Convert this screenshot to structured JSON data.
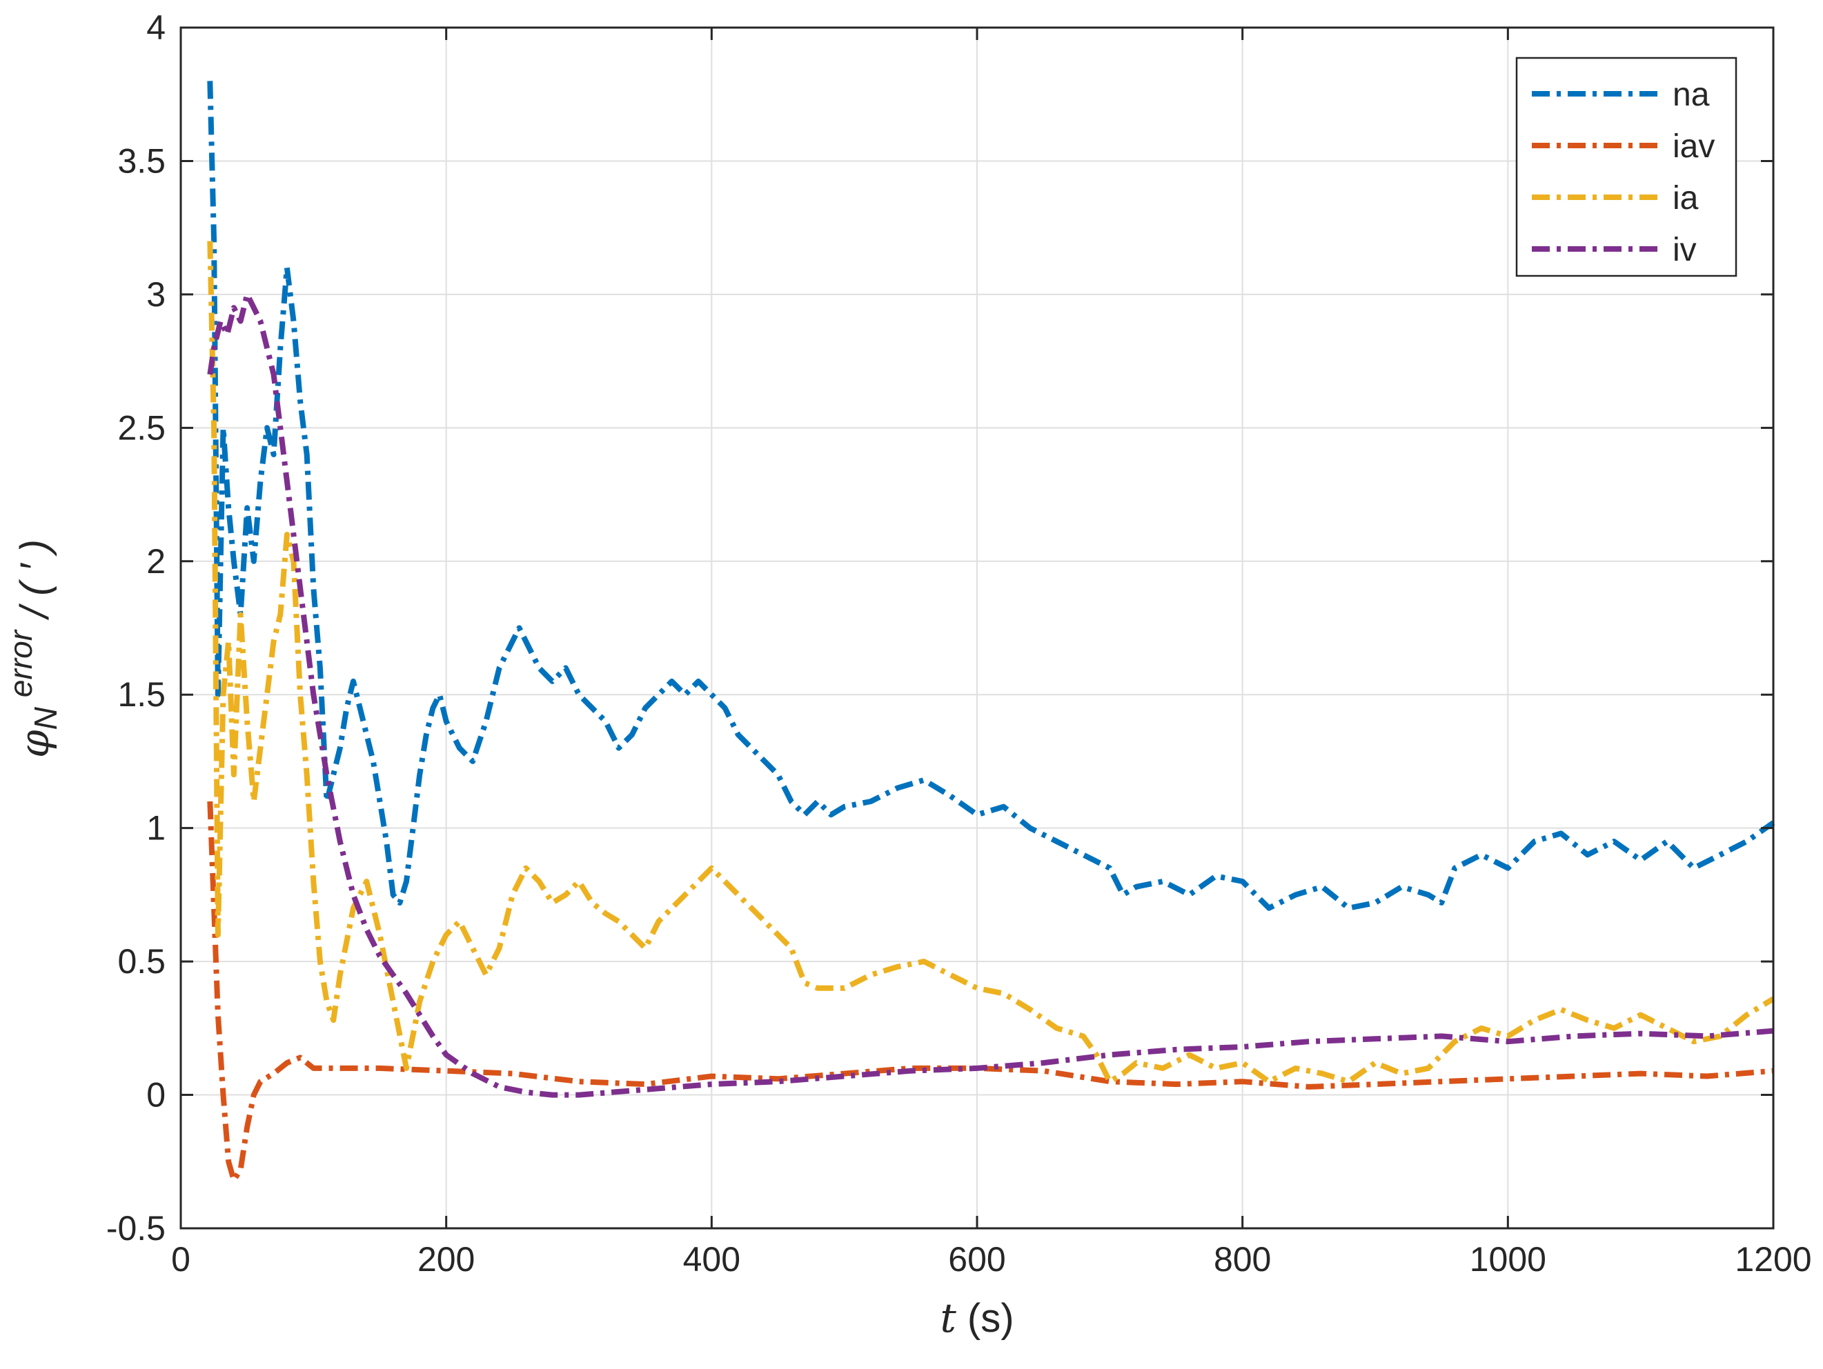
{
  "chart_data": {
    "type": "line",
    "title": "",
    "xlabel": "t (s)",
    "ylabel": "φ_N error / (′)",
    "xlim": [
      0,
      1200
    ],
    "ylim": [
      -0.5,
      4
    ],
    "xticks": [
      0,
      200,
      400,
      600,
      800,
      1000,
      1200
    ],
    "yticks": [
      -0.5,
      0,
      0.5,
      1,
      1.5,
      2,
      2.5,
      3,
      3.5,
      4
    ],
    "xtick_labels": [
      "0",
      "200",
      "400",
      "600",
      "800",
      "1000",
      "1200"
    ],
    "ytick_labels": [
      "-0.5",
      "0",
      "0.5",
      "1",
      "1.5",
      "2",
      "2.5",
      "3",
      "3.5",
      "4"
    ],
    "grid": true,
    "legend_position": "top-right",
    "line_style": "dash-dot",
    "series": [
      {
        "name": "na",
        "color": "#0072BD",
        "x": [
          22,
          25,
          28,
          32,
          36,
          40,
          45,
          50,
          55,
          60,
          65,
          70,
          75,
          80,
          85,
          90,
          95,
          100,
          105,
          110,
          115,
          120,
          125,
          130,
          135,
          140,
          145,
          150,
          155,
          160,
          165,
          170,
          175,
          180,
          185,
          190,
          195,
          200,
          210,
          220,
          230,
          240,
          250,
          255,
          260,
          270,
          280,
          290,
          300,
          310,
          320,
          330,
          340,
          350,
          360,
          370,
          380,
          390,
          400,
          410,
          420,
          430,
          440,
          450,
          460,
          470,
          480,
          490,
          500,
          520,
          540,
          560,
          580,
          600,
          620,
          640,
          660,
          680,
          700,
          710,
          720,
          740,
          760,
          780,
          800,
          810,
          820,
          840,
          860,
          880,
          900,
          920,
          940,
          950,
          960,
          980,
          1000,
          1020,
          1040,
          1060,
          1080,
          1100,
          1120,
          1140,
          1160,
          1180,
          1200
        ],
        "y": [
          3.8,
          3.2,
          1.5,
          2.5,
          2.2,
          2.0,
          1.8,
          2.2,
          2.0,
          2.3,
          2.5,
          2.4,
          2.8,
          3.1,
          2.9,
          2.6,
          2.4,
          1.9,
          1.6,
          1.1,
          1.2,
          1.3,
          1.45,
          1.55,
          1.45,
          1.35,
          1.25,
          1.1,
          0.95,
          0.75,
          0.72,
          0.8,
          1.0,
          1.2,
          1.35,
          1.45,
          1.5,
          1.4,
          1.3,
          1.25,
          1.4,
          1.6,
          1.7,
          1.75,
          1.7,
          1.6,
          1.55,
          1.6,
          1.5,
          1.45,
          1.4,
          1.3,
          1.35,
          1.45,
          1.5,
          1.55,
          1.5,
          1.55,
          1.5,
          1.45,
          1.35,
          1.3,
          1.25,
          1.2,
          1.1,
          1.05,
          1.1,
          1.05,
          1.08,
          1.1,
          1.15,
          1.18,
          1.12,
          1.05,
          1.08,
          1.0,
          0.95,
          0.9,
          0.85,
          0.75,
          0.78,
          0.8,
          0.75,
          0.82,
          0.8,
          0.75,
          0.7,
          0.75,
          0.78,
          0.7,
          0.72,
          0.78,
          0.75,
          0.72,
          0.85,
          0.9,
          0.85,
          0.95,
          0.98,
          0.9,
          0.95,
          0.88,
          0.95,
          0.85,
          0.9,
          0.95,
          1.02
        ]
      },
      {
        "name": "iav",
        "color": "#D95319",
        "x": [
          22,
          25,
          28,
          32,
          36,
          40,
          45,
          50,
          55,
          60,
          70,
          80,
          90,
          100,
          120,
          150,
          200,
          250,
          300,
          350,
          400,
          450,
          500,
          550,
          600,
          650,
          700,
          750,
          800,
          850,
          900,
          950,
          1000,
          1050,
          1100,
          1150,
          1200
        ],
        "y": [
          1.1,
          0.7,
          0.3,
          0.0,
          -0.25,
          -0.32,
          -0.28,
          -0.12,
          0.0,
          0.05,
          0.08,
          0.12,
          0.14,
          0.1,
          0.1,
          0.1,
          0.09,
          0.08,
          0.05,
          0.04,
          0.07,
          0.06,
          0.08,
          0.1,
          0.1,
          0.09,
          0.05,
          0.04,
          0.05,
          0.03,
          0.04,
          0.05,
          0.06,
          0.07,
          0.08,
          0.07,
          0.09
        ]
      },
      {
        "name": "ia",
        "color": "#EDB120",
        "x": [
          22,
          25,
          28,
          32,
          36,
          40,
          45,
          50,
          55,
          60,
          65,
          70,
          75,
          80,
          85,
          90,
          95,
          100,
          105,
          110,
          115,
          120,
          130,
          140,
          150,
          160,
          170,
          180,
          190,
          200,
          210,
          220,
          230,
          240,
          250,
          260,
          270,
          280,
          290,
          300,
          310,
          320,
          330,
          340,
          350,
          360,
          370,
          380,
          390,
          400,
          420,
          440,
          460,
          470,
          480,
          500,
          520,
          540,
          560,
          580,
          600,
          620,
          640,
          660,
          680,
          690,
          700,
          710,
          720,
          740,
          760,
          780,
          800,
          820,
          840,
          860,
          880,
          900,
          920,
          940,
          960,
          980,
          1000,
          1020,
          1040,
          1060,
          1080,
          1100,
          1120,
          1140,
          1160,
          1180,
          1200
        ],
        "y": [
          3.2,
          2.5,
          0.6,
          1.5,
          1.7,
          1.2,
          1.8,
          1.4,
          1.1,
          1.3,
          1.5,
          1.7,
          1.8,
          2.1,
          2.0,
          1.5,
          1.2,
          0.8,
          0.5,
          0.35,
          0.28,
          0.45,
          0.7,
          0.8,
          0.6,
          0.35,
          0.1,
          0.35,
          0.5,
          0.6,
          0.65,
          0.55,
          0.45,
          0.55,
          0.75,
          0.85,
          0.8,
          0.72,
          0.75,
          0.8,
          0.72,
          0.68,
          0.65,
          0.6,
          0.55,
          0.65,
          0.7,
          0.75,
          0.8,
          0.85,
          0.75,
          0.65,
          0.55,
          0.42,
          0.4,
          0.4,
          0.45,
          0.48,
          0.5,
          0.45,
          0.4,
          0.38,
          0.32,
          0.25,
          0.22,
          0.15,
          0.05,
          0.08,
          0.12,
          0.1,
          0.15,
          0.1,
          0.12,
          0.05,
          0.1,
          0.08,
          0.05,
          0.12,
          0.08,
          0.1,
          0.2,
          0.25,
          0.22,
          0.28,
          0.32,
          0.28,
          0.25,
          0.3,
          0.25,
          0.2,
          0.22,
          0.3,
          0.36
        ]
      },
      {
        "name": "iv",
        "color": "#7E2F8E",
        "x": [
          22,
          25,
          30,
          35,
          40,
          45,
          50,
          55,
          60,
          65,
          70,
          75,
          80,
          85,
          90,
          95,
          100,
          110,
          120,
          130,
          140,
          150,
          160,
          170,
          180,
          190,
          200,
          220,
          240,
          260,
          280,
          300,
          350,
          400,
          450,
          500,
          550,
          600,
          650,
          700,
          750,
          800,
          850,
          900,
          950,
          1000,
          1050,
          1100,
          1150,
          1200
        ],
        "y": [
          2.7,
          2.8,
          2.9,
          2.85,
          2.95,
          2.9,
          3.0,
          2.95,
          2.9,
          2.8,
          2.7,
          2.5,
          2.3,
          2.1,
          1.9,
          1.7,
          1.5,
          1.2,
          0.95,
          0.75,
          0.62,
          0.52,
          0.45,
          0.38,
          0.3,
          0.22,
          0.15,
          0.08,
          0.03,
          0.01,
          0.0,
          0.0,
          0.02,
          0.04,
          0.05,
          0.07,
          0.09,
          0.1,
          0.12,
          0.15,
          0.17,
          0.18,
          0.2,
          0.21,
          0.22,
          0.2,
          0.22,
          0.23,
          0.22,
          0.24
        ]
      }
    ]
  }
}
